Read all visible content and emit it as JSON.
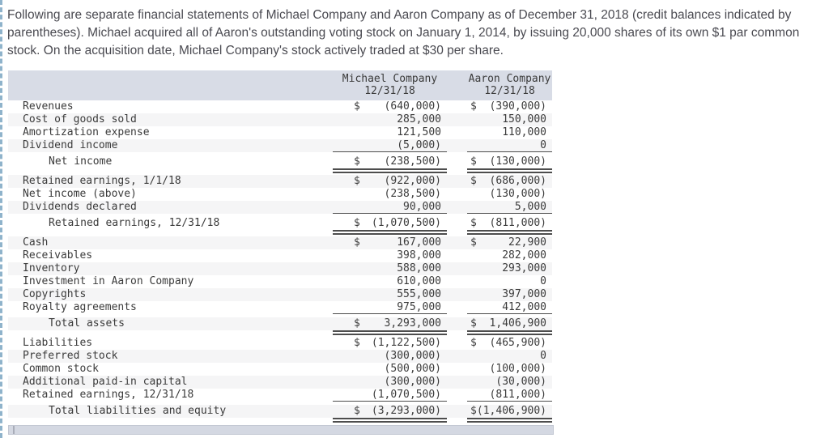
{
  "intro": {
    "text": "Following are separate financial statements of Michael Company and Aaron Company as of December 31, 2018 (credit balances indicated by parentheses). Michael acquired all of Aaron's outstanding voting stock on January 1, 2014, by issuing 20,000 shares of its own $1 par common stock. On the acquisition date, Michael Company's stock actively traded at $30 per share."
  },
  "table": {
    "columns": [
      {
        "company": "Michael Company",
        "date": "12/31/18"
      },
      {
        "company": "Aaron Company",
        "date": "12/31/18"
      }
    ],
    "rows": [
      {
        "label": "Revenues",
        "m_d": "$",
        "m": "(640,000)",
        "a_d": "$",
        "a": "(390,000)"
      },
      {
        "label": "Cost of goods sold",
        "m_d": "",
        "m": "285,000",
        "a_d": "",
        "a": "150,000"
      },
      {
        "label": "Amortization expense",
        "m_d": "",
        "m": "121,500",
        "a_d": "",
        "a": "110,000"
      },
      {
        "label": "Dividend income",
        "m_d": "",
        "m": "(5,000)",
        "a_d": "",
        "a": "0",
        "rule": "single"
      },
      {
        "label": "Net income",
        "m_d": "$",
        "m": "(238,500)",
        "a_d": "$",
        "a": "(130,000)",
        "rule": "double",
        "total": true
      },
      {
        "label": "Retained earnings, 1/1/18",
        "m_d": "$",
        "m": "(922,000)",
        "a_d": "$",
        "a": "(686,000)"
      },
      {
        "label": "Net income (above)",
        "m_d": "",
        "m": "(238,500)",
        "a_d": "",
        "a": "(130,000)"
      },
      {
        "label": "Dividends declared",
        "m_d": "",
        "m": "90,000",
        "a_d": "",
        "a": "5,000",
        "rule": "single"
      },
      {
        "label": "Retained earnings, 12/31/18",
        "m_d": "$",
        "m": "(1,070,500)",
        "a_d": "$",
        "a": "(811,000)",
        "rule": "double",
        "total": true
      },
      {
        "label": "Cash",
        "m_d": "$",
        "m": "167,000",
        "a_d": "$",
        "a": "22,900"
      },
      {
        "label": "Receivables",
        "m_d": "",
        "m": "398,000",
        "a_d": "",
        "a": "282,000"
      },
      {
        "label": "Inventory",
        "m_d": "",
        "m": "588,000",
        "a_d": "",
        "a": "293,000"
      },
      {
        "label": "Investment in Aaron Company",
        "m_d": "",
        "m": "610,000",
        "a_d": "",
        "a": "0"
      },
      {
        "label": "Copyrights",
        "m_d": "",
        "m": "555,000",
        "a_d": "",
        "a": "397,000"
      },
      {
        "label": "Royalty agreements",
        "m_d": "",
        "m": "975,000",
        "a_d": "",
        "a": "412,000",
        "rule": "single"
      },
      {
        "label": "Total assets",
        "m_d": "$",
        "m": "3,293,000",
        "a_d": "$",
        "a": "1,406,900",
        "rule": "double",
        "total": true
      },
      {
        "label": "Liabilities",
        "m_d": "$",
        "m": "(1,122,500)",
        "a_d": "$",
        "a": "(465,900)"
      },
      {
        "label": "Preferred stock",
        "m_d": "",
        "m": "(300,000)",
        "a_d": "",
        "a": "0"
      },
      {
        "label": "Common stock",
        "m_d": "",
        "m": "(500,000)",
        "a_d": "",
        "a": "(100,000)"
      },
      {
        "label": "Additional paid-in capital",
        "m_d": "",
        "m": "(300,000)",
        "a_d": "",
        "a": "(30,000)"
      },
      {
        "label": "Retained earnings, 12/31/18",
        "m_d": "",
        "m": "(1,070,500)",
        "a_d": "",
        "a": "(811,000)",
        "rule": "single"
      },
      {
        "label": "Total liabilities and equity",
        "m_d": "$",
        "m": "(3,293,000)",
        "a_d": "$",
        "a": "(1,406,900)",
        "rule": "double",
        "total": true
      }
    ]
  },
  "colors": {
    "header_band": "#d8dce6",
    "row_stripe": "#f5f5f6",
    "rule": "#4d4d4d",
    "table_text": "#3b3b3b",
    "intro_text": "#4a4a51",
    "scrollbar_track": "#d4d8e2",
    "clip_border": "#8fb3cb"
  }
}
